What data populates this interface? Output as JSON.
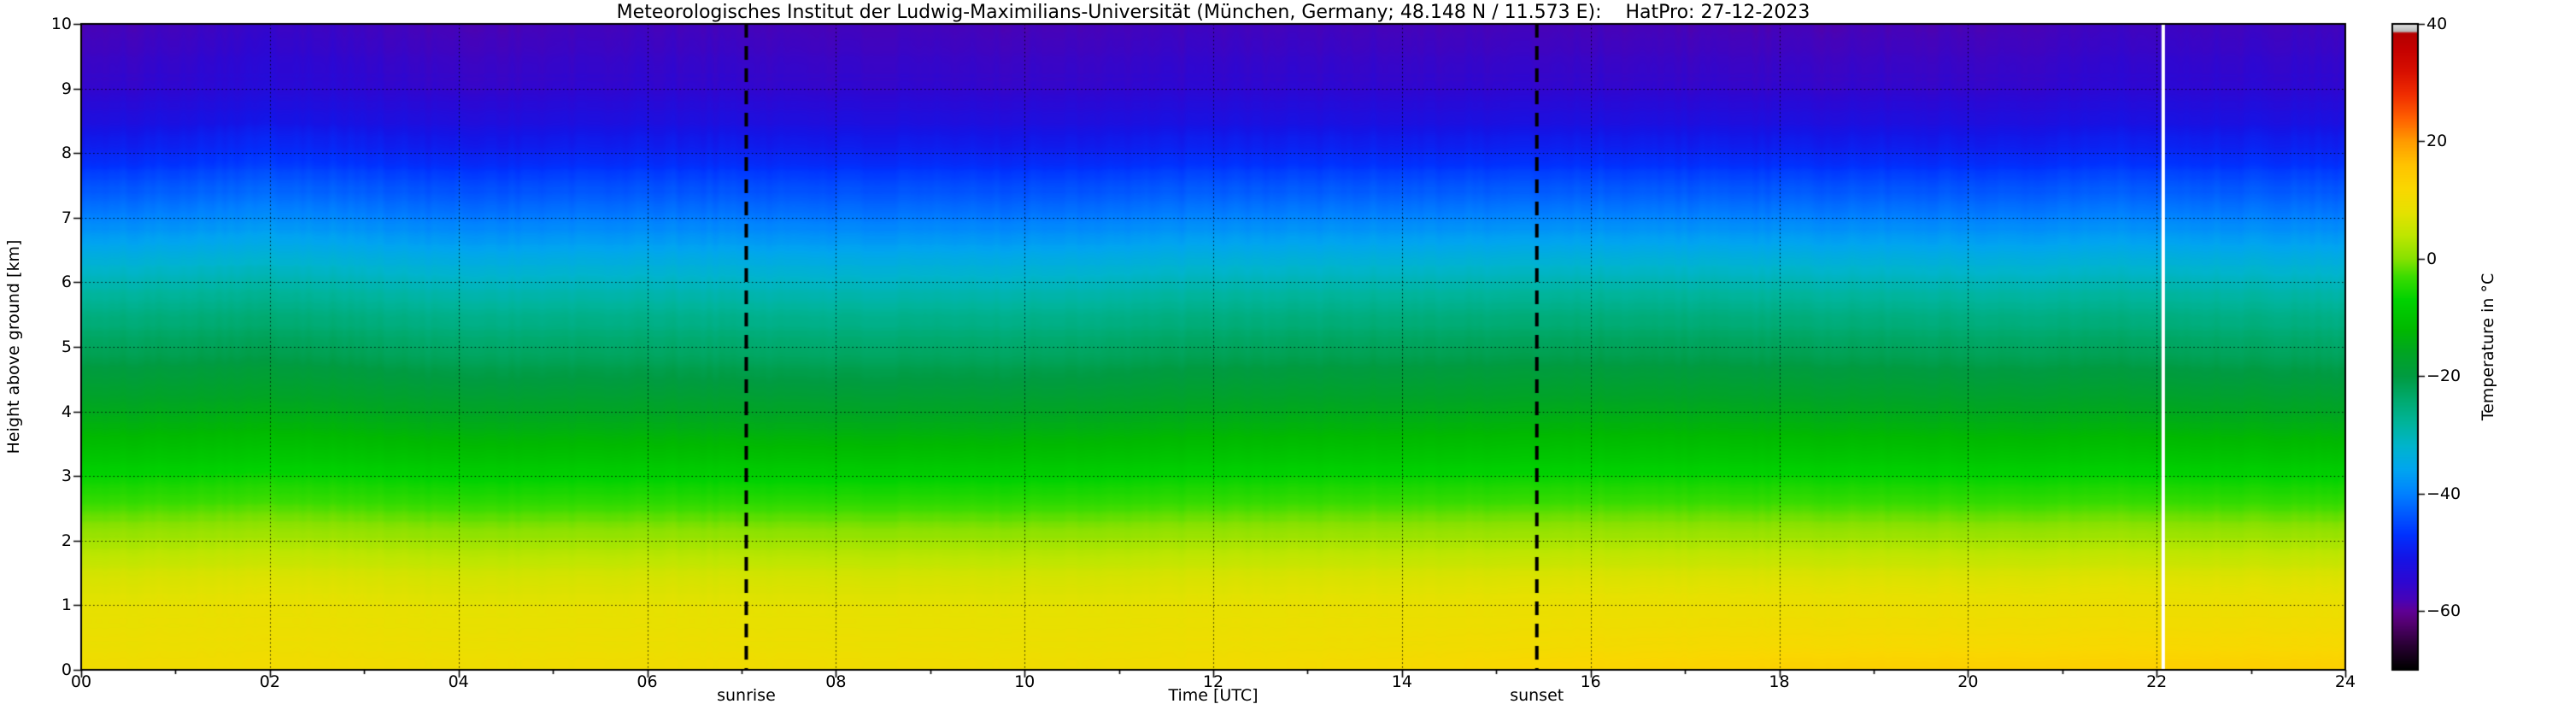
{
  "title": "Meteorologisches Institut der Ludwig-Maximilians-Universität (München, Germany; 48.148 N / 11.573 E):    HatPro: 27-12-2023",
  "axes": {
    "xlabel": "Time [UTC]",
    "ylabel": "Height above ground [km]",
    "colorbar_label": "Temperature in  °C"
  },
  "annotations": {
    "sunrise_label": "sunrise",
    "sunset_label": "sunset"
  },
  "chart_data": {
    "type": "heatmap",
    "title": "Meteorologisches Institut der Ludwig-Maximilians-Universität (München, Germany; 48.148 N / 11.573 E): HatPro: 27-12-2023",
    "xlabel": "Time [UTC]",
    "ylabel": "Height above ground [km]",
    "x_range": [
      0,
      24
    ],
    "y_range": [
      0,
      10
    ],
    "grid": true,
    "x_ticks": [
      {
        "v": 0,
        "label": "00"
      },
      {
        "v": 2,
        "label": "02"
      },
      {
        "v": 4,
        "label": "04"
      },
      {
        "v": 6,
        "label": "06"
      },
      {
        "v": 8,
        "label": "08"
      },
      {
        "v": 10,
        "label": "10"
      },
      {
        "v": 12,
        "label": "12"
      },
      {
        "v": 14,
        "label": "14"
      },
      {
        "v": 16,
        "label": "16"
      },
      {
        "v": 18,
        "label": "18"
      },
      {
        "v": 20,
        "label": "20"
      },
      {
        "v": 22,
        "label": "22"
      },
      {
        "v": 24,
        "label": "24"
      }
    ],
    "y_ticks": [
      {
        "v": 0,
        "label": "0"
      },
      {
        "v": 1,
        "label": "1"
      },
      {
        "v": 2,
        "label": "2"
      },
      {
        "v": 3,
        "label": "3"
      },
      {
        "v": 4,
        "label": "4"
      },
      {
        "v": 5,
        "label": "5"
      },
      {
        "v": 6,
        "label": "6"
      },
      {
        "v": 7,
        "label": "7"
      },
      {
        "v": 8,
        "label": "8"
      },
      {
        "v": 9,
        "label": "9"
      },
      {
        "v": 10,
        "label": "10"
      }
    ],
    "sunrise_utc": 7.05,
    "sunset_utc": 15.43,
    "data_gap_utc": 22.07,
    "temperature_profile": {
      "heights_km": [
        0,
        0.5,
        1,
        1.5,
        2,
        2.5,
        3,
        3.5,
        4,
        4.5,
        5,
        5.5,
        6,
        6.5,
        7,
        7.5,
        8,
        8.5,
        9,
        9.5,
        10
      ],
      "temps_c": [
        10,
        9,
        8,
        6,
        2,
        -2.5,
        -7,
        -11.5,
        -15.5,
        -19,
        -22.5,
        -26,
        -30,
        -35,
        -40,
        -44,
        -48.5,
        -52,
        -55,
        -56,
        -57.5
      ]
    },
    "surface_afternoon_warming_c": 3.5,
    "colorbar": {
      "range": [
        -70,
        40
      ],
      "label": "Temperature in  °C",
      "ticks": [
        {
          "v": 40,
          "label": "40"
        },
        {
          "v": 20,
          "label": "20"
        },
        {
          "v": 0,
          "label": "0"
        },
        {
          "v": -20,
          "label": "−20"
        },
        {
          "v": -40,
          "label": "−40"
        },
        {
          "v": -60,
          "label": "−60"
        }
      ],
      "colormap_stops": [
        [
          -70,
          "#000000"
        ],
        [
          -66,
          "#280032"
        ],
        [
          -62,
          "#550073"
        ],
        [
          -60,
          "#5f0096"
        ],
        [
          -58,
          "#4603b9"
        ],
        [
          -55,
          "#2d07d2"
        ],
        [
          -51,
          "#1414e6"
        ],
        [
          -47,
          "#0032ff"
        ],
        [
          -43,
          "#005fff"
        ],
        [
          -40,
          "#0082ff"
        ],
        [
          -36,
          "#00a5f0"
        ],
        [
          -32,
          "#00b4cd"
        ],
        [
          -28,
          "#00b49b"
        ],
        [
          -24,
          "#00aa6e"
        ],
        [
          -20,
          "#009b41"
        ],
        [
          -16,
          "#00a523"
        ],
        [
          -12,
          "#00b900"
        ],
        [
          -7,
          "#00d200"
        ],
        [
          -3,
          "#3cdc00"
        ],
        [
          0,
          "#87e100"
        ],
        [
          4,
          "#bee600"
        ],
        [
          8,
          "#e6e100"
        ],
        [
          12,
          "#fad700"
        ],
        [
          16,
          "#ffc300"
        ],
        [
          20,
          "#ff9b00"
        ],
        [
          24,
          "#ff5f00"
        ],
        [
          28,
          "#f02d00"
        ],
        [
          32,
          "#d70f00"
        ],
        [
          36,
          "#c30000"
        ],
        [
          38.5,
          "#b40000"
        ],
        [
          38.8,
          "#b9b9b9"
        ],
        [
          40,
          "#e1e1e1"
        ]
      ]
    },
    "annotation_lines": [
      {
        "type": "dashed-black",
        "x_utc": 7.05,
        "meaning": "sunrise"
      },
      {
        "type": "dashed-black",
        "x_utc": 15.43,
        "meaning": "sunset"
      },
      {
        "type": "solid-white",
        "x_utc": 22.07,
        "meaning": "data gap"
      }
    ]
  }
}
